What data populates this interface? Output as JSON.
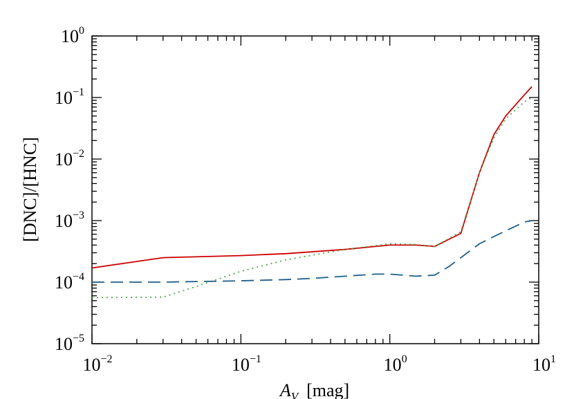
{
  "chart_data": {
    "type": "line",
    "title": "",
    "xlabel": {
      "symbol": "A",
      "subscript": "V",
      "unit": "[mag]"
    },
    "ylabel": "[DNC]/[HNC]",
    "xscale": "log",
    "yscale": "log",
    "xlim": [
      0.01,
      10
    ],
    "ylim": [
      1e-05,
      1
    ],
    "x_ticks": [
      {
        "value": 0.01,
        "base": "10",
        "exp": "−2"
      },
      {
        "value": 0.1,
        "base": "10",
        "exp": "−1"
      },
      {
        "value": 1,
        "base": "10",
        "exp": "0"
      },
      {
        "value": 10,
        "base": "10",
        "exp": "1"
      }
    ],
    "y_ticks": [
      {
        "value": 1e-05,
        "base": "10",
        "exp": "−5"
      },
      {
        "value": 0.0001,
        "base": "10",
        "exp": "−4"
      },
      {
        "value": 0.001,
        "base": "10",
        "exp": "−3"
      },
      {
        "value": 0.01,
        "base": "10",
        "exp": "−2"
      },
      {
        "value": 0.1,
        "base": "10",
        "exp": "−1"
      },
      {
        "value": 1,
        "base": "10",
        "exp": "0"
      }
    ],
    "grid": false,
    "legend": "none",
    "series": [
      {
        "style": "solid",
        "color": "#cc0000",
        "x": [
          0.01,
          0.03,
          0.1,
          0.2,
          0.5,
          0.8,
          1.0,
          1.5,
          2.0,
          3.0,
          4.0,
          5.0,
          6.0,
          8.0,
          9.0
        ],
        "y": [
          0.00017,
          0.00025,
          0.00027,
          0.00029,
          0.00034,
          0.00038,
          0.0004,
          0.0004,
          0.00038,
          0.00062,
          0.006,
          0.025,
          0.05,
          0.11,
          0.15
        ]
      },
      {
        "style": "dotted",
        "color": "#4aa84a",
        "x": [
          0.01,
          0.03,
          0.05,
          0.1,
          0.2,
          0.5,
          1.0,
          1.5,
          2.0,
          3.0,
          4.0,
          5.0,
          6.0,
          8.0,
          9.0
        ],
        "y": [
          5.6e-05,
          5.7e-05,
          8.5e-05,
          0.00015,
          0.00023,
          0.00034,
          0.00042,
          0.00041,
          0.00038,
          0.00066,
          0.006,
          0.022,
          0.045,
          0.085,
          0.1
        ]
      },
      {
        "style": "dashed",
        "color": "#1f5f8b",
        "x": [
          0.01,
          0.03,
          0.1,
          0.2,
          0.3,
          0.5,
          0.8,
          1.0,
          1.5,
          2.0,
          2.5,
          3.0,
          4.0,
          5.0,
          6.0,
          8.0,
          9.0
        ],
        "y": [
          0.0001,
          0.0001,
          0.000105,
          0.00011,
          0.000115,
          0.000125,
          0.000135,
          0.000135,
          0.000125,
          0.00013,
          0.00018,
          0.00025,
          0.00042,
          0.00055,
          0.00068,
          0.00095,
          0.001
        ]
      }
    ]
  }
}
